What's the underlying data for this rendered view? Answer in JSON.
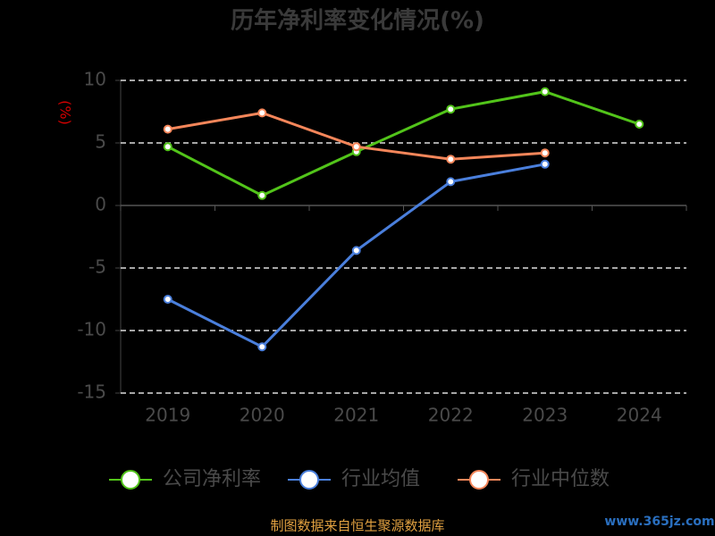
{
  "chart_data": {
    "type": "line",
    "title": "历年净利率变化情况(%)",
    "y_label": "(%)",
    "categories": [
      "2019",
      "2020",
      "2021",
      "2022",
      "2023",
      "2024"
    ],
    "series": [
      {
        "name": "公司净利率",
        "color": "#52c41a",
        "values": [
          4.7,
          0.8,
          4.3,
          7.7,
          9.1,
          6.5
        ]
      },
      {
        "name": "行业均值",
        "color": "#4a7fdc",
        "values": [
          -7.5,
          -11.3,
          -3.6,
          1.9,
          3.3,
          null
        ]
      },
      {
        "name": "行业中位数",
        "color": "#f5865a",
        "values": [
          6.1,
          7.4,
          4.7,
          3.7,
          4.2,
          null
        ]
      }
    ],
    "ylim": [
      -15,
      10
    ],
    "yticks": [
      -15,
      -10,
      -5,
      0,
      5,
      10
    ],
    "grid": true,
    "legend": "bottom",
    "source": "制图数据来自恒生聚源数据库",
    "watermark": "www.365jz.com"
  }
}
